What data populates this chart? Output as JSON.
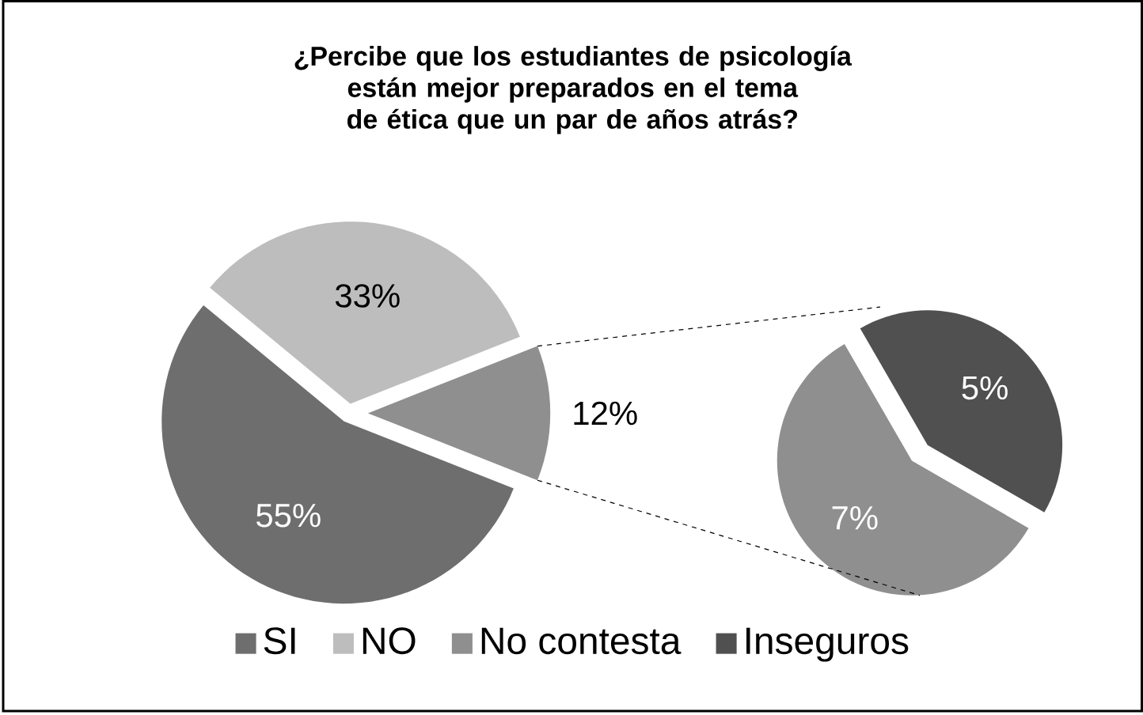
{
  "chart_data": [
    {
      "type": "pie",
      "title": "¿Percibe que los estudiantes de psicología están mejor preparados en el tema de ética que un par de años atrás?",
      "categories": [
        "SI",
        "NO",
        null
      ],
      "values": [
        55,
        33,
        12
      ],
      "colors": [
        "#6e6e6e",
        "#bdbdbd",
        "#8f8f8f"
      ],
      "value_labels": [
        "55%",
        "33%",
        "12%"
      ],
      "legend": "bottom"
    },
    {
      "type": "pie",
      "categories": [
        "No contesta",
        "Inseguros"
      ],
      "values": [
        7,
        5
      ],
      "colors": [
        "#8f8f8f",
        "#505050"
      ],
      "value_labels": [
        "7%",
        "5%"
      ],
      "legend": "bottom"
    }
  ]
}
